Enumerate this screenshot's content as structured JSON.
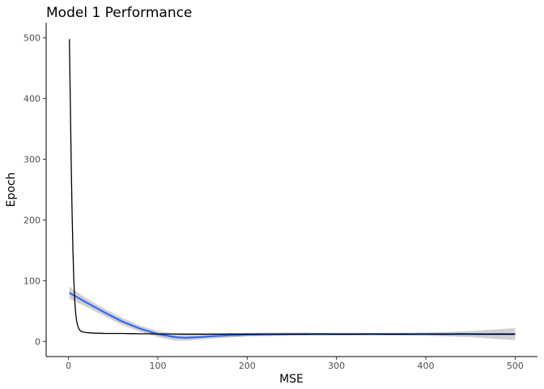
{
  "chart_data": {
    "type": "line",
    "title": "Model 1 Performance",
    "xlabel": "MSE",
    "ylabel": "Epoch",
    "xlim": [
      -25,
      525
    ],
    "ylim": [
      -25,
      525
    ],
    "x_ticks": [
      0,
      100,
      200,
      300,
      400,
      500
    ],
    "y_ticks": [
      0,
      100,
      200,
      300,
      400,
      500
    ],
    "grid": false,
    "legend": "none",
    "colors": {
      "raw": "#000000",
      "smooth": "#3366FF",
      "band": "#c8c8c8"
    },
    "series": [
      {
        "role": "raw",
        "x": [
          1,
          2,
          3,
          4,
          5,
          6,
          7,
          8,
          9,
          10,
          11,
          12,
          13,
          15,
          18,
          20,
          25,
          30,
          35,
          40,
          50,
          60,
          70,
          80,
          90,
          100,
          110,
          120,
          130,
          140,
          150,
          160,
          170,
          180,
          190,
          200,
          220,
          240,
          260,
          280,
          300,
          320,
          340,
          360,
          380,
          400,
          420,
          440,
          460,
          480,
          500
        ],
        "y": [
          498,
          400,
          300,
          215,
          150,
          100,
          68,
          47,
          35,
          28,
          23,
          20,
          18,
          16,
          15,
          14.5,
          14,
          13.5,
          13.5,
          13,
          13,
          13,
          12.8,
          12.5,
          12.5,
          12.3,
          12.2,
          12.2,
          12,
          12,
          12,
          12,
          12,
          12.2,
          12,
          12,
          12.2,
          12,
          12,
          12.3,
          12,
          12,
          12.2,
          12,
          12,
          12.3,
          12,
          12.4,
          12,
          12,
          12
        ]
      },
      {
        "role": "smooth",
        "x": [
          1,
          20,
          40,
          60,
          80,
          100,
          120,
          130,
          140,
          150,
          160,
          180,
          200,
          250,
          300,
          350,
          400,
          450,
          500
        ],
        "y": [
          80,
          64,
          48,
          33,
          21,
          12,
          7,
          6,
          6.5,
          7.5,
          8.5,
          10,
          11,
          12,
          12,
          12,
          12,
          12,
          12
        ],
        "lower": [
          70,
          57,
          42,
          27,
          16,
          7,
          1,
          1,
          2,
          3,
          4.5,
          6.5,
          8,
          9.5,
          10,
          10,
          9.5,
          7,
          2
        ],
        "upper": [
          90,
          71,
          54,
          39,
          26,
          17,
          12,
          11.5,
          11,
          12,
          12.5,
          13.5,
          14,
          14.5,
          14,
          14,
          14.5,
          17,
          22
        ]
      }
    ]
  }
}
